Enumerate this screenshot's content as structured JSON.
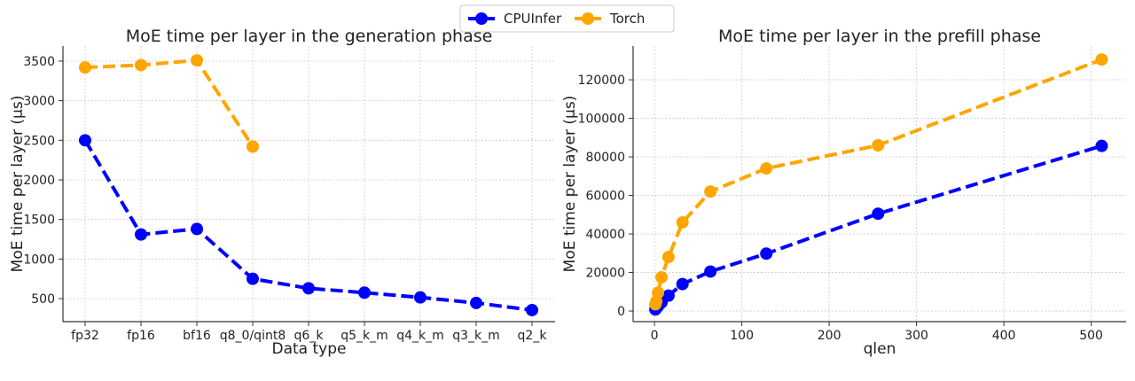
{
  "legend": {
    "placement": "top-center",
    "entries": [
      {
        "name": "CPUInfer",
        "color": "#0000ff"
      },
      {
        "name": "Torch",
        "color": "#ffa500"
      }
    ]
  },
  "chart_data": [
    {
      "type": "line",
      "title": "MoE time per layer in the generation phase",
      "xlabel": "Data type",
      "ylabel": "MoE time per layer (µs)",
      "categories": [
        "fp32",
        "fp16",
        "bf16",
        "q8_0/qint8",
        "q6_k",
        "q5_k_m",
        "q4_k_m",
        "q3_k_m",
        "q2_k"
      ],
      "ylim": [
        209,
        3690
      ],
      "yticks": [
        500,
        1000,
        1500,
        2000,
        2500,
        3000,
        3500
      ],
      "grid": true,
      "series": [
        {
          "name": "CPUInfer",
          "color": "#0000ff",
          "values": [
            2500,
            1310,
            1380,
            750,
            630,
            575,
            515,
            445,
            355
          ]
        },
        {
          "name": "Torch",
          "color": "#ffa500",
          "values": [
            3420,
            3450,
            3510,
            2420,
            null,
            null,
            null,
            null,
            null
          ]
        }
      ]
    },
    {
      "type": "line",
      "title": "MoE time per layer in the prefill phase",
      "xlabel": "qlen",
      "ylabel": "MoE time per layer (µs)",
      "x": [
        1,
        2,
        4,
        8,
        16,
        32,
        64,
        128,
        256,
        512
      ],
      "xlim": [
        -24.5,
        540
      ],
      "ylim": [
        -5500,
        137500
      ],
      "xticks": [
        0,
        100,
        200,
        300,
        400,
        500
      ],
      "yticks": [
        0,
        20000,
        40000,
        60000,
        80000,
        100000,
        120000
      ],
      "grid": true,
      "series": [
        {
          "name": "CPUInfer",
          "color": "#0000ff",
          "values": [
            800,
            1500,
            2500,
            4500,
            8000,
            14000,
            20500,
            29800,
            50500,
            85700
          ]
        },
        {
          "name": "Torch",
          "color": "#ffa500",
          "values": [
            3500,
            5000,
            9500,
            17500,
            28000,
            46000,
            62000,
            74000,
            86000,
            130500
          ]
        }
      ]
    }
  ]
}
